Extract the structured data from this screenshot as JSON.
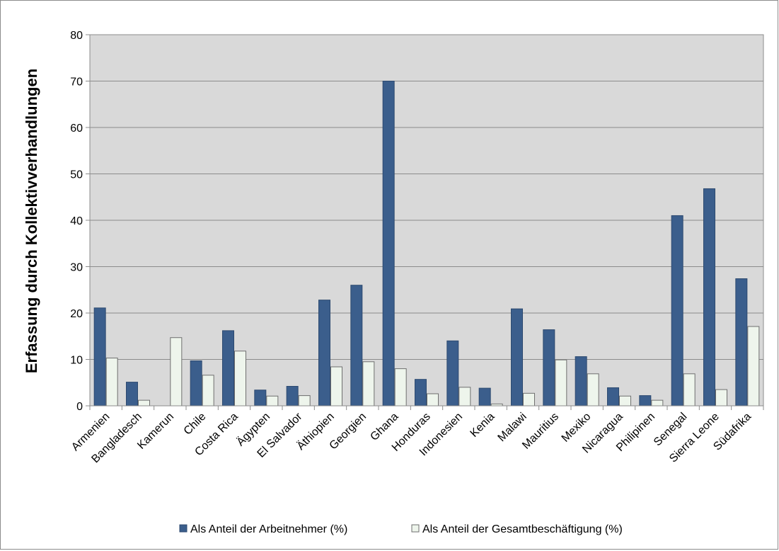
{
  "chart_data": {
    "type": "bar",
    "title": "",
    "xlabel": "",
    "ylabel": "Erfassung durch Kollektivverhandlungen",
    "ylim": [
      0,
      80
    ],
    "yticks": [
      0,
      10,
      20,
      30,
      40,
      50,
      60,
      70,
      80
    ],
    "grid": true,
    "legend_position": "bottom",
    "categories": [
      "Armenien",
      "Bangladesch",
      "Kamerun",
      "Chile",
      "Costa Rica",
      "Ägypten",
      "El Salvador",
      "Äthiopien",
      "Georgien",
      "Ghana",
      "Honduras",
      "Indonesien",
      "Kenia",
      "Malawi",
      "Mauritius",
      "Mexiko",
      "Nicaragua",
      "Philipinen",
      "Senegal",
      "Sierra Leone",
      "Südafrika"
    ],
    "series": [
      {
        "name": "Als Anteil der Arbeitnehmer (%)",
        "color": "#3b5e8c",
        "values": [
          21.1,
          5.1,
          null,
          9.7,
          16.2,
          3.4,
          4.2,
          22.8,
          26.0,
          70.0,
          5.7,
          14.0,
          3.8,
          20.9,
          16.4,
          10.6,
          3.9,
          2.2,
          41.0,
          46.8,
          27.4
        ]
      },
      {
        "name": "Als Anteil der Gesamtbeschäftigung (%)",
        "color": "#eef5ec",
        "values": [
          10.3,
          1.2,
          14.7,
          6.6,
          11.8,
          2.1,
          2.2,
          8.4,
          9.5,
          8.0,
          2.6,
          4.0,
          0.4,
          2.7,
          9.9,
          6.9,
          2.1,
          1.2,
          6.9,
          3.5,
          17.1
        ]
      }
    ]
  }
}
